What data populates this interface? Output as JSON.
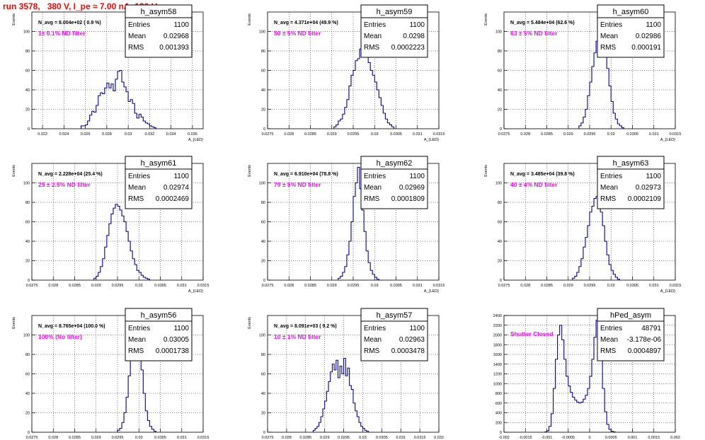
{
  "page_title": "run 3578,   380 V, I_pe ≈ 7.00 nA, 120 Hz",
  "colors": {
    "title": "#ff0000",
    "annotation": "#ff00ff",
    "histogram": "#000099",
    "grid": "#000000",
    "frame": "#000000"
  },
  "stats_labels": {
    "entries": "Entries",
    "mean": "Mean",
    "rms": "RMS"
  },
  "chart_data": [
    {
      "type": "histogram",
      "name": "h_asym58",
      "stats": {
        "entries": "1100",
        "mean": "0.02968",
        "rms": "0.001393"
      },
      "n_avg": "N_avg = 8.004e+02 ( 0.9 %)",
      "filter_label": "1± 0.1% ND filter",
      "ylabel": "Events",
      "xlabel": "A_{LED}",
      "xlim": [
        0.021,
        0.037
      ],
      "ylim": [
        0,
        120
      ],
      "xticks": [
        0.022,
        0.024,
        0.026,
        0.028,
        0.03,
        0.032,
        0.034,
        0.036
      ],
      "xtick_labels": [
        "0.022",
        "0.024",
        "0.026",
        "0.028",
        "0.03",
        "0.032",
        "0.034",
        "0.036"
      ],
      "yticks": [
        0,
        20,
        40,
        60,
        80,
        100
      ],
      "bin_start": 0.0256,
      "bin_width": 0.0002,
      "counts": [
        3,
        3,
        4,
        8,
        14,
        18,
        17,
        24,
        34,
        37,
        36,
        42,
        47,
        42,
        46,
        39,
        51,
        59,
        60,
        48,
        43,
        38,
        28,
        30,
        26,
        16,
        11,
        15,
        12,
        8,
        6,
        5,
        3,
        2,
        1
      ]
    },
    {
      "type": "histogram",
      "name": "h_asym59",
      "stats": {
        "entries": "1100",
        "mean": "0.0298",
        "rms": "0.0002223"
      },
      "n_avg": "N_avg = 4.371e+04 (49.9 %)",
      "filter_label": "50 ± 5% ND filter",
      "ylabel": "Events",
      "xlabel": "A_{LED}",
      "xlim": [
        0.0275,
        0.0315
      ],
      "ylim": [
        0,
        120
      ],
      "xticks": [
        0.0275,
        0.028,
        0.0285,
        0.029,
        0.0295,
        0.03,
        0.0305,
        0.031,
        0.0315
      ],
      "xtick_labels": [
        "0.0275",
        "0.028",
        "0.0285",
        "0.029",
        "0.0295",
        "0.03",
        "0.0305",
        "0.031",
        "0.0315"
      ],
      "yticks": [
        0,
        20,
        40,
        60,
        80,
        100
      ],
      "bin_start": 0.02905,
      "bin_width": 5e-05,
      "counts": [
        2,
        4,
        8,
        10,
        15,
        22,
        30,
        44,
        55,
        60,
        70,
        72,
        82,
        76,
        74,
        78,
        68,
        60,
        55,
        48,
        40,
        32,
        24,
        16,
        10,
        6,
        4,
        2
      ]
    },
    {
      "type": "histogram",
      "name": "h_asym60",
      "stats": {
        "entries": "1100",
        "mean": "0.02986",
        "rms": "0.000191"
      },
      "n_avg": "N_avg = 5.484e+04 (62.6 %)",
      "filter_label": "63 ± 5% ND filter",
      "ylabel": "Events",
      "xlabel": "A_{LED}",
      "xlim": [
        0.0275,
        0.0315
      ],
      "ylim": [
        0,
        120
      ],
      "xticks": [
        0.0275,
        0.028,
        0.0285,
        0.029,
        0.0295,
        0.03,
        0.0305,
        0.031,
        0.0315
      ],
      "xtick_labels": [
        "0.0275",
        "0.028",
        "0.0285",
        "0.029",
        "0.0295",
        "0.03",
        "0.0305",
        "0.031",
        "0.0315"
      ],
      "yticks": [
        0,
        20,
        40,
        60,
        80,
        100
      ],
      "bin_start": 0.02925,
      "bin_width": 5e-05,
      "counts": [
        3,
        6,
        12,
        20,
        34,
        48,
        64,
        78,
        90,
        97,
        88,
        94,
        80,
        62,
        44,
        28,
        16,
        10,
        5,
        3,
        1
      ]
    },
    {
      "type": "histogram",
      "name": "h_asym61",
      "stats": {
        "entries": "1100",
        "mean": "0.02974",
        "rms": "0.0002469"
      },
      "n_avg": "N_avg = 2.228e+04 (25.4 %)",
      "filter_label": "25 ± 2.5% ND filter",
      "ylabel": "Events",
      "xlabel": "A_{LED}",
      "xlim": [
        0.0275,
        0.0315
      ],
      "ylim": [
        0,
        120
      ],
      "xticks": [
        0.0275,
        0.028,
        0.0285,
        0.029,
        0.0295,
        0.03,
        0.0305,
        0.031,
        0.0315
      ],
      "xtick_labels": [
        "0.0275",
        "0.028",
        "0.0285",
        "0.029",
        "0.0295",
        "0.03",
        "0.0305",
        "0.031",
        "0.0315"
      ],
      "yticks": [
        0,
        20,
        40,
        60,
        80,
        100
      ],
      "bin_start": 0.02895,
      "bin_width": 5e-05,
      "counts": [
        2,
        4,
        8,
        14,
        22,
        34,
        46,
        58,
        68,
        74,
        78,
        76,
        72,
        66,
        60,
        50,
        40,
        30,
        22,
        16,
        10,
        8,
        5,
        3,
        2,
        1
      ]
    },
    {
      "type": "histogram",
      "name": "h_asym62",
      "stats": {
        "entries": "1100",
        "mean": "0.02969",
        "rms": "0.0001809"
      },
      "n_avg": "N_avg = 6.910e+04 (78.8 %)",
      "filter_label": "79 ± 5% ND filter",
      "ylabel": "Events",
      "xlabel": "A_{LED}",
      "xlim": [
        0.0275,
        0.0315
      ],
      "ylim": [
        0,
        120
      ],
      "xticks": [
        0.0275,
        0.028,
        0.0285,
        0.029,
        0.0295,
        0.03,
        0.0305,
        0.031,
        0.0315
      ],
      "xtick_labels": [
        "0.0275",
        "0.028",
        "0.0285",
        "0.029",
        "0.0295",
        "0.03",
        "0.0305",
        "0.031",
        "0.0315"
      ],
      "yticks": [
        0,
        20,
        40,
        60,
        80,
        100
      ],
      "bin_start": 0.02915,
      "bin_width": 5e-05,
      "counts": [
        2,
        4,
        8,
        14,
        26,
        40,
        60,
        86,
        100,
        116,
        94,
        72,
        50,
        30,
        18,
        10,
        6,
        3,
        1
      ]
    },
    {
      "type": "histogram",
      "name": "h_asym63",
      "stats": {
        "entries": "1100",
        "mean": "0.02973",
        "rms": "0.0002109"
      },
      "n_avg": "N_avg = 3.485e+04 (39.8 %)",
      "filter_label": "40 ± 4% ND filter",
      "ylabel": "Events",
      "xlabel": "A_{LED}",
      "xlim": [
        0.0275,
        0.0315
      ],
      "ylim": [
        0,
        120
      ],
      "xticks": [
        0.0275,
        0.028,
        0.0285,
        0.029,
        0.0295,
        0.03,
        0.0305,
        0.031,
        0.0315
      ],
      "xtick_labels": [
        "0.0275",
        "0.028",
        "0.0285",
        "0.029",
        "0.0295",
        "0.03",
        "0.0305",
        "0.031",
        "0.0315"
      ],
      "yticks": [
        0,
        20,
        40,
        60,
        80,
        100
      ],
      "bin_start": 0.0291,
      "bin_width": 5e-05,
      "counts": [
        2,
        4,
        8,
        14,
        22,
        34,
        44,
        56,
        70,
        76,
        84,
        86,
        78,
        70,
        56,
        40,
        26,
        16,
        10,
        6,
        3,
        1
      ]
    },
    {
      "type": "histogram",
      "name": "h_asym56",
      "stats": {
        "entries": "1100",
        "mean": "0.03005",
        "rms": "0.0001738"
      },
      "n_avg": "N_avg = 8.765e+04 (100.0 %)",
      "filter_label": "100% (No filter)",
      "ylabel": "Events",
      "xlabel": "A_{LED}",
      "xlim": [
        0.0275,
        0.0315
      ],
      "ylim": [
        0,
        120
      ],
      "xticks": [
        0.0275,
        0.028,
        0.0285,
        0.029,
        0.0295,
        0.03,
        0.0305,
        0.031,
        0.0315
      ],
      "xtick_labels": [
        "0.0275",
        "0.028",
        "0.0285",
        "0.029",
        "0.0295",
        "0.03",
        "0.0305",
        "0.031",
        "0.0315"
      ],
      "yticks": [
        0,
        20,
        40,
        60,
        80,
        100
      ],
      "bin_start": 0.0295,
      "bin_width": 5e-05,
      "counts": [
        2,
        4,
        10,
        20,
        36,
        58,
        80,
        100,
        96,
        106,
        88,
        64,
        40,
        22,
        12,
        6,
        3,
        1
      ]
    },
    {
      "type": "histogram",
      "name": "h_asym57",
      "stats": {
        "entries": "1100",
        "mean": "0.02963",
        "rms": "0.0003478"
      },
      "n_avg": "N_avg = 8.091e+03 ( 9.2 %)",
      "filter_label": "10 ± 1% ND filter",
      "ylabel": "Events",
      "xlabel": "A_{LED}",
      "xlim": [
        0.0275,
        0.032
      ],
      "ylim": [
        0,
        120
      ],
      "xticks": [
        0.0275,
        0.028,
        0.0285,
        0.029,
        0.0295,
        0.03,
        0.0305,
        0.031,
        0.0315,
        0.032
      ],
      "xtick_labels": [
        "0.0275",
        "0.028",
        "0.0285",
        "0.029",
        "0.0295",
        "0.03",
        "0.0305",
        "0.031",
        "0.0315",
        "0.032"
      ],
      "yticks": [
        0,
        20,
        40,
        60,
        80,
        100
      ],
      "bin_start": 0.0287,
      "bin_width": 5e-05,
      "counts": [
        2,
        4,
        6,
        10,
        16,
        24,
        32,
        42,
        52,
        62,
        70,
        64,
        74,
        56,
        68,
        60,
        76,
        58,
        66,
        48,
        44,
        30,
        22,
        16,
        10,
        6,
        4,
        2,
        1
      ]
    },
    {
      "type": "histogram",
      "name": "hPed_asym",
      "stats": {
        "entries": "48791",
        "mean": "-3.178e-06",
        "rms": "0.0004897"
      },
      "n_avg": "",
      "filter_label": "Shutter Closed",
      "ylabel": "",
      "xlabel": "A_{LED}",
      "xlim": [
        -0.002,
        0.002
      ],
      "ylim": [
        0,
        2400
      ],
      "xticks": [
        -0.002,
        -0.0015,
        -0.001,
        -0.0005,
        0,
        0.0005,
        0.001,
        0.0015,
        0.002
      ],
      "xtick_labels": [
        "-0.002",
        "-0.0015",
        "-0.001",
        "-0.0005",
        "0",
        "0.0005",
        "0.001",
        "0.0015",
        "0.002"
      ],
      "yticks": [
        0,
        200,
        400,
        600,
        800,
        1000,
        1200,
        1400,
        1600,
        1800,
        2000,
        2200,
        2400
      ],
      "bin_start": -0.00105,
      "bin_width": 5e-05,
      "counts": [
        5,
        30,
        120,
        380,
        900,
        1500,
        2000,
        2200,
        1900,
        1500,
        1150,
        950,
        820,
        720,
        660,
        620,
        600,
        620,
        680,
        760,
        900,
        1150,
        1500,
        1950,
        2300,
        2050,
        1500,
        900,
        420,
        160,
        60,
        20,
        5
      ]
    }
  ]
}
